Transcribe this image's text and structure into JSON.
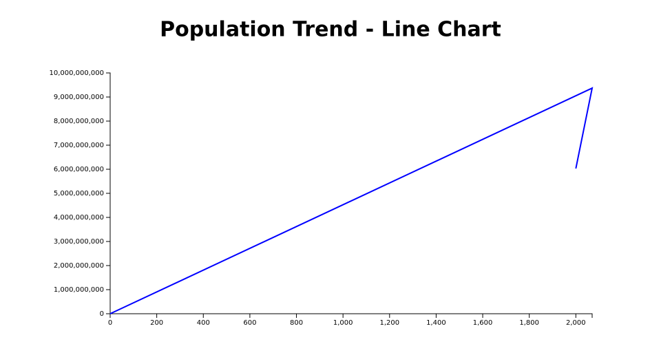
{
  "chart_data": {
    "type": "line",
    "title": "Population Trend - Line Chart",
    "x": [
      2000,
      2070,
      0
    ],
    "series": [
      {
        "name": "Population",
        "color": "#0000ff",
        "values": [
          6030000000,
          9370000000,
          0
        ]
      }
    ],
    "xlim": [
      0,
      2070
    ],
    "xticks": [
      0,
      200,
      400,
      600,
      800,
      {
        "value": 1000,
        "label": "1,000"
      },
      {
        "value": 1200,
        "label": "1,200"
      },
      {
        "value": 1400,
        "label": "1,400"
      },
      {
        "value": 1600,
        "label": "1,600"
      },
      {
        "value": 1800,
        "label": "1,800"
      },
      {
        "value": 2000,
        "label": "2,000"
      }
    ],
    "ylim": [
      0,
      10000000000
    ],
    "yticks": [
      0,
      {
        "value": 1000000000,
        "label": "1,000,000,000"
      },
      {
        "value": 2000000000,
        "label": "2,000,000,000"
      },
      {
        "value": 3000000000,
        "label": "3,000,000,000"
      },
      {
        "value": 4000000000,
        "label": "4,000,000,000"
      },
      {
        "value": 5000000000,
        "label": "5,000,000,000"
      },
      {
        "value": 6000000000,
        "label": "6,000,000,000"
      },
      {
        "value": 7000000000,
        "label": "7,000,000,000"
      },
      {
        "value": 8000000000,
        "label": "8,000,000,000"
      },
      {
        "value": 9000000000,
        "label": "9,000,000,000"
      },
      {
        "value": 10000000000,
        "label": "10,000,000,000"
      }
    ],
    "grid": false
  }
}
